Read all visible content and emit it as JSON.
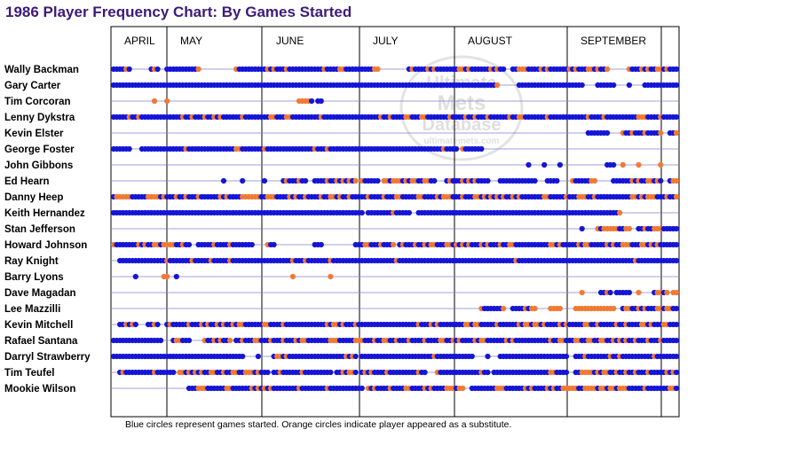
{
  "title": "1986 Player Frequency Chart: By Games Started",
  "caption": "Blue circles represent games started. Orange circles indicate player appeared as a substitute.",
  "watermark": {
    "line1": "Ultimate",
    "line2": "Mets",
    "line3": "Database",
    "url": "ultimatemets.com"
  },
  "colors": {
    "started": "#1515d6",
    "substitute": "#f07a32",
    "title": "#3d1a78",
    "row_line": "#8080cc",
    "grid": "#000000"
  },
  "chart_data": {
    "type": "scatter",
    "encoding": "Each row is a player; each circle is one game appearance by day of the 1986 season (Apr 8 - Oct 5). Blue = started, orange = substitute.",
    "months": [
      "APRIL",
      "MAY",
      "JUNE",
      "JULY",
      "AUGUST",
      "SEPTEMBER"
    ],
    "players": [
      {
        "name": "Wally Backman",
        "runs": [
          [
            1,
            6,
            "mix",
            0.4
          ],
          [
            13,
            15,
            "mix",
            0.25
          ],
          [
            18,
            28,
            "start",
            0.1
          ],
          [
            40,
            85,
            "start",
            0.15
          ],
          [
            95,
            125,
            "start",
            0.2
          ],
          [
            128,
            158,
            "mix",
            0.3
          ],
          [
            165,
            180,
            "mix",
            0.35
          ]
        ]
      },
      {
        "name": "Gary Carter",
        "runs": [
          [
            1,
            122,
            "start",
            0
          ],
          [
            123,
            123,
            "sub",
            1
          ],
          [
            130,
            150,
            "start",
            0
          ],
          [
            155,
            160,
            "start",
            0
          ],
          [
            165,
            165,
            "start",
            0
          ],
          [
            170,
            180,
            "start",
            0
          ]
        ]
      },
      {
        "name": "Tim Corcoran",
        "runs": [
          [
            14,
            14,
            "sub",
            1
          ],
          [
            18,
            18,
            "sub",
            1
          ],
          [
            60,
            64,
            "mix",
            0.6
          ],
          [
            66,
            67,
            "start",
            0
          ]
        ]
      },
      {
        "name": "Lenny Dykstra",
        "runs": [
          [
            1,
            180,
            "start",
            0.15
          ]
        ]
      },
      {
        "name": "Kevin Elster",
        "runs": [
          [
            152,
            158,
            "start",
            0.2
          ],
          [
            163,
            175,
            "mix",
            0.4
          ],
          [
            178,
            180,
            "mix",
            0.5
          ]
        ]
      },
      {
        "name": "George Foster",
        "runs": [
          [
            1,
            6,
            "start",
            0
          ],
          [
            10,
            110,
            "start",
            0.1
          ],
          [
            112,
            118,
            "mix",
            0.5
          ]
        ]
      },
      {
        "name": "John Gibbons",
        "runs": [
          [
            133,
            133,
            "start",
            0
          ],
          [
            138,
            138,
            "start",
            0
          ],
          [
            143,
            143,
            "start",
            0
          ],
          [
            158,
            160,
            "start",
            0
          ],
          [
            163,
            163,
            "sub",
            1
          ],
          [
            168,
            168,
            "sub",
            1
          ],
          [
            175,
            175,
            "sub",
            1
          ]
        ]
      },
      {
        "name": "Ed Hearn",
        "runs": [
          [
            36,
            36,
            "start",
            0
          ],
          [
            42,
            42,
            "start",
            0
          ],
          [
            49,
            49,
            "start",
            0
          ],
          [
            55,
            62,
            "mix",
            0.3
          ],
          [
            65,
            78,
            "mix",
            0.4
          ],
          [
            80,
            85,
            "mix",
            0.3
          ],
          [
            87,
            103,
            "mix",
            0.45
          ],
          [
            107,
            120,
            "mix",
            0.3
          ],
          [
            124,
            135,
            "start",
            0.15
          ],
          [
            139,
            142,
            "start",
            0
          ],
          [
            147,
            154,
            "mix",
            0.3
          ],
          [
            160,
            175,
            "mix",
            0.4
          ],
          [
            178,
            180,
            "mix",
            0.4
          ]
        ]
      },
      {
        "name": "Danny Heep",
        "runs": [
          [
            1,
            180,
            "mix",
            0.35
          ]
        ]
      },
      {
        "name": "Keith Hernandez",
        "runs": [
          [
            1,
            80,
            "start",
            0
          ],
          [
            82,
            95,
            "mix",
            0.2
          ],
          [
            98,
            162,
            "start",
            0.05
          ]
        ]
      },
      {
        "name": "Stan Jefferson",
        "runs": [
          [
            150,
            150,
            "start",
            0
          ],
          [
            155,
            165,
            "mix",
            0.5
          ],
          [
            168,
            180,
            "mix",
            0.5
          ]
        ]
      },
      {
        "name": "Howard Johnson",
        "runs": [
          [
            1,
            25,
            "mix",
            0.3
          ],
          [
            28,
            45,
            "start",
            0.1
          ],
          [
            50,
            52,
            "mix",
            0.6
          ],
          [
            65,
            67,
            "start",
            0
          ],
          [
            78,
            90,
            "mix",
            0.4
          ],
          [
            92,
            180,
            "mix",
            0.3
          ]
        ]
      },
      {
        "name": "Ray Knight",
        "runs": [
          [
            3,
            180,
            "start",
            0.08
          ]
        ]
      },
      {
        "name": "Barry Lyons",
        "runs": [
          [
            8,
            8,
            "start",
            0
          ],
          [
            17,
            18,
            "sub",
            1
          ],
          [
            21,
            21,
            "start",
            0
          ],
          [
            58,
            58,
            "sub",
            1
          ],
          [
            70,
            70,
            "sub",
            1
          ]
        ]
      },
      {
        "name": "Dave Magadan",
        "runs": [
          [
            150,
            150,
            "sub",
            1
          ],
          [
            156,
            159,
            "mix",
            0.5
          ],
          [
            161,
            165,
            "start",
            0
          ],
          [
            168,
            168,
            "sub",
            1
          ],
          [
            173,
            177,
            "mix",
            0.5
          ],
          [
            179,
            180,
            "sub",
            1
          ]
        ]
      },
      {
        "name": "Lee Mazzilli",
        "runs": [
          [
            118,
            125,
            "mix",
            0.4
          ],
          [
            128,
            135,
            "mix",
            0.5
          ],
          [
            140,
            143,
            "mix",
            0.5
          ],
          [
            148,
            160,
            "sub",
            0.85
          ],
          [
            163,
            180,
            "mix",
            0.5
          ]
        ]
      },
      {
        "name": "Kevin Mitchell",
        "runs": [
          [
            3,
            8,
            "mix",
            0.5
          ],
          [
            12,
            15,
            "start",
            0.2
          ],
          [
            18,
            180,
            "start",
            0.2
          ]
        ]
      },
      {
        "name": "Rafael Santana",
        "runs": [
          [
            1,
            16,
            "start",
            0.1
          ],
          [
            20,
            25,
            "mix",
            0.4
          ],
          [
            30,
            38,
            "mix",
            0.5
          ],
          [
            40,
            180,
            "start",
            0.25
          ]
        ]
      },
      {
        "name": "Darryl Strawberry",
        "runs": [
          [
            1,
            42,
            "start",
            0
          ],
          [
            47,
            47,
            "start",
            0
          ],
          [
            52,
            78,
            "mix",
            0.3
          ],
          [
            80,
            115,
            "start",
            0.05
          ],
          [
            120,
            120,
            "start",
            0
          ],
          [
            124,
            145,
            "start",
            0.05
          ],
          [
            148,
            180,
            "start",
            0.05
          ]
        ]
      },
      {
        "name": "Tim Teufel",
        "runs": [
          [
            3,
            20,
            "start",
            0.15
          ],
          [
            22,
            50,
            "mix",
            0.4
          ],
          [
            52,
            70,
            "start",
            0.15
          ],
          [
            72,
            78,
            "mix",
            0.5
          ],
          [
            80,
            100,
            "start",
            0.1
          ],
          [
            104,
            120,
            "start",
            0.15
          ],
          [
            122,
            145,
            "start",
            0.1
          ],
          [
            148,
            180,
            "mix",
            0.4
          ]
        ]
      },
      {
        "name": "Mookie Wilson",
        "runs": [
          [
            25,
            80,
            "start",
            0.2
          ],
          [
            82,
            112,
            "mix",
            0.45
          ],
          [
            115,
            180,
            "mix",
            0.35
          ]
        ]
      }
    ]
  }
}
